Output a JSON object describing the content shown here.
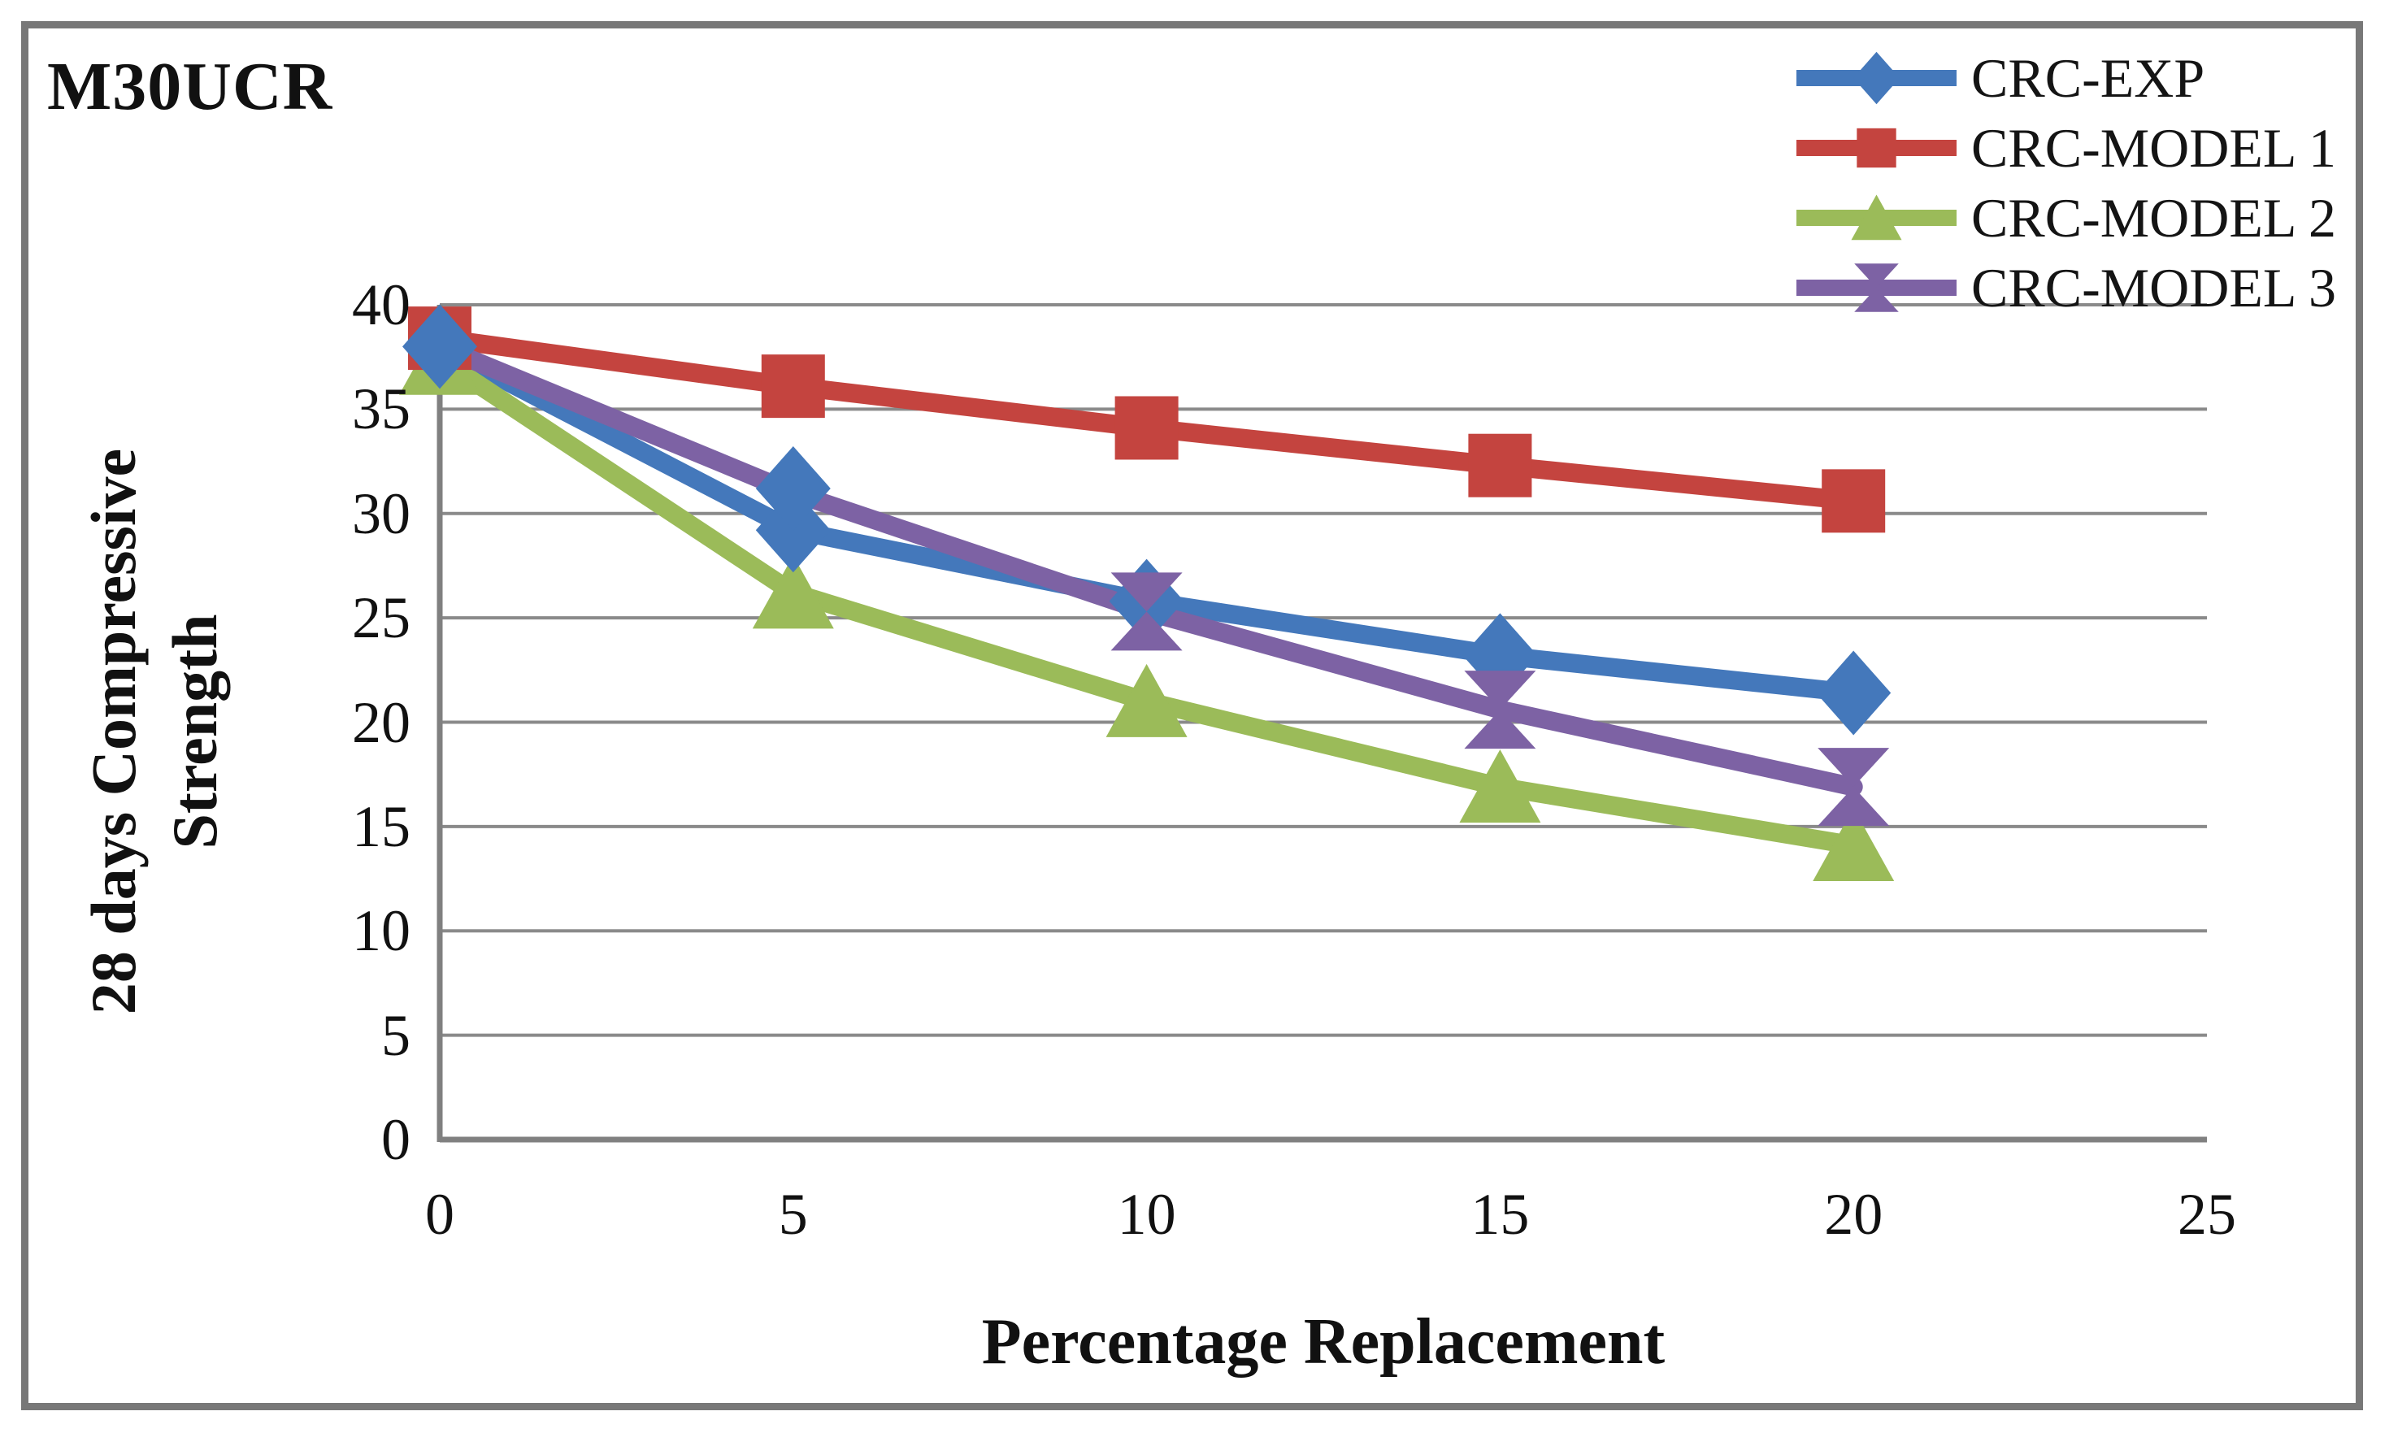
{
  "figure": {
    "title": "M30UCR",
    "xlabel": "Percentage Replacement",
    "ylabel_line1": "28 days Compressive",
    "ylabel_line2": "Strength"
  },
  "chart_data": {
    "type": "line",
    "title": "M30UCR",
    "xlabel": "Percentage Replacement",
    "ylabel": "28 days Compressive Strength",
    "x": [
      0,
      5,
      10,
      15,
      20
    ],
    "xlim": [
      0,
      25
    ],
    "ylim": [
      0,
      40
    ],
    "xticks": [
      0,
      5,
      10,
      15,
      20,
      25
    ],
    "yticks": [
      0,
      5,
      10,
      15,
      20,
      25,
      30,
      35,
      40
    ],
    "grid": "horizontal",
    "legend_position": "top-right",
    "axis_color": "#808080",
    "gridline_color": "#8a8a8a",
    "series": [
      {
        "name": "CRC-EXP",
        "color": "#4478BB",
        "marker": "diamond",
        "values": [
          38.0,
          29.2,
          25.8,
          23.2,
          21.4
        ],
        "marker_at": [
          0,
          5,
          10,
          15,
          20
        ]
      },
      {
        "name": "CRC-MODEL 1",
        "color": "#C4443F",
        "marker": "square",
        "values": [
          38.4,
          36.1,
          34.1,
          32.3,
          30.6
        ],
        "marker_at": [
          0,
          5,
          10,
          15,
          20
        ]
      },
      {
        "name": "CRC-MODEL 2",
        "color": "#9BBB59",
        "marker": "triangle",
        "values": [
          37.4,
          26.2,
          21.0,
          16.9,
          14.1
        ],
        "marker_at": [
          0,
          5,
          10,
          15,
          20
        ]
      },
      {
        "name": "CRC-MODEL 3",
        "color": "#7D62A4",
        "marker": "bowtie",
        "values": [
          38.0,
          31.0,
          25.3,
          20.6,
          16.9
        ],
        "marker_at": [
          10,
          15,
          20
        ]
      }
    ],
    "extra_markers": [
      {
        "series": "CRC-EXP",
        "marker": "diamond",
        "color": "#4478BB",
        "x": 5,
        "y": 31.2,
        "note": "second diamond visible above the CRC-EXP line at 5% in the source figure"
      }
    ]
  }
}
